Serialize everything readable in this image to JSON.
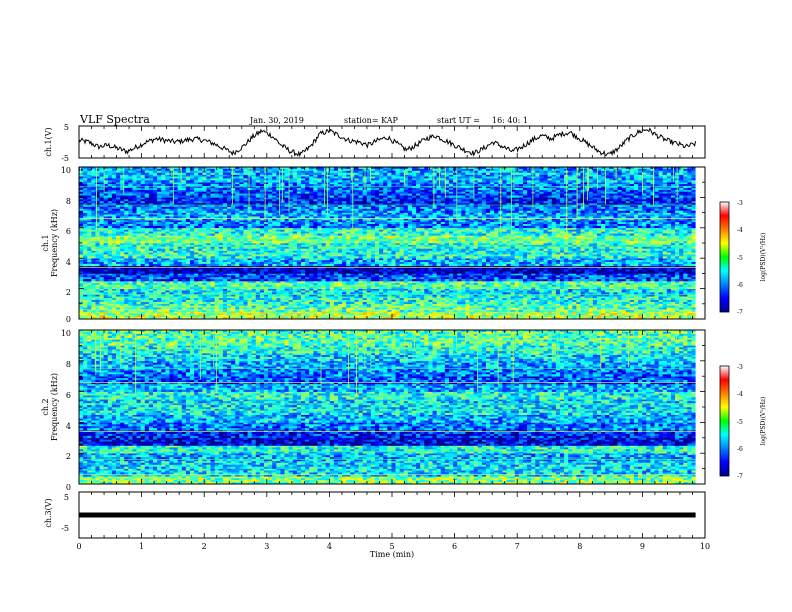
{
  "header": {
    "title": "VLF Spectra",
    "date": "Jan. 30, 2019",
    "station": "station= KAP",
    "start": "start UT =",
    "start_time": "16: 40: 1"
  },
  "chart_data": [
    {
      "type": "line",
      "name": "ch1-waveform",
      "ylabel": "ch.1(V)",
      "xlim": [
        0,
        10
      ],
      "ylim": [
        -5,
        5
      ],
      "yticks": [
        "5",
        "-5"
      ],
      "x_end": 9.85,
      "samples": [
        0.5,
        0.0,
        -1.5,
        -1.0,
        -2.0,
        -3.0,
        -1.5,
        0.0,
        1.0,
        0.5,
        0.0,
        0.5,
        1.0,
        0.5,
        -0.5,
        -2.0,
        -3.5,
        -1.5,
        1.5,
        3.5,
        2.0,
        -1.0,
        -3.0,
        -4.0,
        -1.5,
        2.5,
        3.5,
        2.0,
        0.5,
        0.0,
        -1.0,
        0.5,
        1.5,
        -0.5,
        -2.5,
        -1.0,
        1.0,
        2.0,
        0.5,
        -1.0,
        -2.5,
        -3.5,
        -2.0,
        0.0,
        -1.5,
        -3.0,
        -1.5,
        0.5,
        2.0,
        1.0,
        2.5,
        3.0,
        1.0,
        -1.0,
        -3.0,
        -4.0,
        -2.0,
        1.0,
        3.0,
        4.0,
        2.0,
        0.5,
        -0.5,
        -1.5,
        -0.5
      ]
    },
    {
      "type": "heatmap",
      "name": "ch1-spectrogram",
      "ylabel": "ch.1",
      "ylabel2": "Frequency (kHz)",
      "ylim": [
        0,
        10
      ],
      "yticks": [
        "0",
        "2",
        "4",
        "6",
        "8",
        "10"
      ],
      "levels_by_band": [
        [
          0.0,
          0.5,
          -4.8
        ],
        [
          0.5,
          1.0,
          -5.2
        ],
        [
          1.0,
          1.5,
          -5.4
        ],
        [
          1.5,
          2.0,
          -5.6
        ],
        [
          2.0,
          2.5,
          -5.2
        ],
        [
          2.5,
          3.0,
          -6.2
        ],
        [
          3.0,
          3.5,
          -6.8
        ],
        [
          3.5,
          4.0,
          -5.8
        ],
        [
          4.0,
          4.5,
          -5.4
        ],
        [
          4.5,
          5.0,
          -5.4
        ],
        [
          5.0,
          5.5,
          -5.0
        ],
        [
          5.5,
          6.0,
          -5.4
        ],
        [
          6.0,
          6.5,
          -6.0
        ],
        [
          6.5,
          7.0,
          -5.8
        ],
        [
          7.0,
          7.5,
          -6.0
        ],
        [
          7.5,
          8.0,
          -6.4
        ],
        [
          8.0,
          8.5,
          -6.2
        ],
        [
          8.5,
          9.0,
          -6.0
        ],
        [
          9.0,
          9.5,
          -5.8
        ],
        [
          9.5,
          10.0,
          -5.8
        ]
      ],
      "colorbar": {
        "label": "log(PSD)(V²/Hz)",
        "range": [
          -7,
          -3
        ],
        "ticks": [
          "-3",
          "-4",
          "-5",
          "-6",
          "-7"
        ]
      }
    },
    {
      "type": "heatmap",
      "name": "ch2-spectrogram",
      "ylabel": "ch.2",
      "ylabel2": "Frequency (kHz)",
      "ylim": [
        0,
        10
      ],
      "yticks": [
        "0",
        "2",
        "4",
        "6",
        "8",
        "10"
      ],
      "levels_by_band": [
        [
          0.0,
          0.5,
          -5.0
        ],
        [
          0.5,
          1.0,
          -5.6
        ],
        [
          1.0,
          1.5,
          -5.6
        ],
        [
          1.5,
          2.0,
          -5.8
        ],
        [
          2.0,
          2.5,
          -5.4
        ],
        [
          2.5,
          3.0,
          -6.6
        ],
        [
          3.0,
          3.5,
          -6.4
        ],
        [
          3.5,
          4.0,
          -6.0
        ],
        [
          4.0,
          4.5,
          -5.8
        ],
        [
          4.5,
          5.0,
          -5.6
        ],
        [
          5.0,
          5.5,
          -5.6
        ],
        [
          5.5,
          6.0,
          -5.4
        ],
        [
          6.0,
          6.5,
          -5.8
        ],
        [
          6.5,
          7.0,
          -6.2
        ],
        [
          7.0,
          7.5,
          -6.0
        ],
        [
          7.5,
          8.0,
          -5.8
        ],
        [
          8.0,
          8.5,
          -5.6
        ],
        [
          8.5,
          9.0,
          -5.4
        ],
        [
          9.0,
          9.5,
          -5.2
        ],
        [
          9.5,
          10.0,
          -5.2
        ]
      ],
      "colorbar": {
        "label": "log(PSD)(V²/Hz)",
        "range": [
          -7,
          -3
        ],
        "ticks": [
          "-3",
          "-4",
          "-5",
          "-6",
          "-7"
        ]
      }
    },
    {
      "type": "line",
      "name": "ch3-waveform",
      "ylabel": "ch.3(V)",
      "xlabel": "Time (min)",
      "xlim": [
        0,
        10
      ],
      "ylim": [
        -5,
        5
      ],
      "yticks": [
        "5",
        "-5"
      ],
      "xticks": [
        "0",
        "1",
        "2",
        "3",
        "4",
        "5",
        "6",
        "7",
        "8",
        "9",
        "10"
      ],
      "x_end": 9.85,
      "value": 0
    }
  ]
}
